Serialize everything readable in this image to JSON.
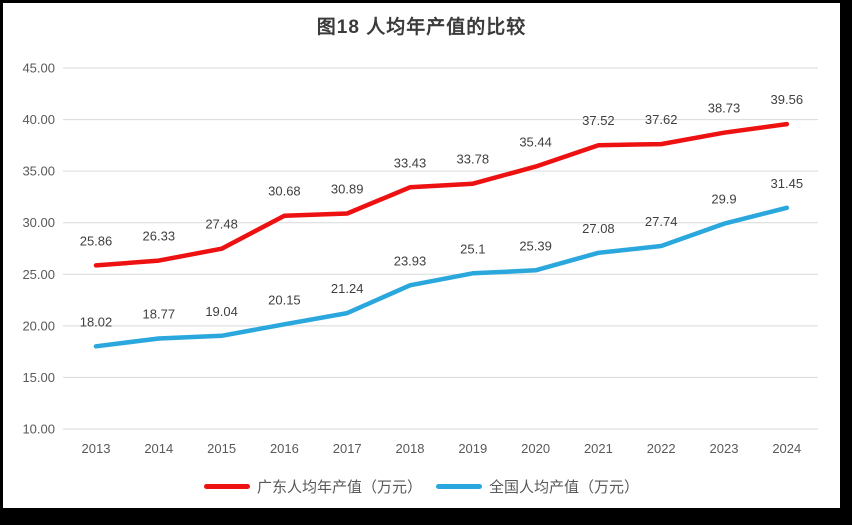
{
  "chart_data": {
    "type": "line",
    "title": "图18 人均年产值的比较",
    "categories": [
      "2013",
      "2014",
      "2015",
      "2016",
      "2017",
      "2018",
      "2019",
      "2020",
      "2021",
      "2022",
      "2023",
      "2024"
    ],
    "series": [
      {
        "id": "guangdong",
        "name": "广东人均年产值（万元）",
        "color": "#ee1111",
        "values": [
          25.86,
          26.33,
          27.48,
          30.68,
          30.89,
          33.43,
          33.78,
          35.44,
          37.52,
          37.62,
          38.73,
          39.56
        ]
      },
      {
        "id": "national",
        "name": "全国人均产值（万元）",
        "color": "#2aa7dd",
        "values": [
          18.02,
          18.77,
          19.04,
          20.15,
          21.24,
          23.93,
          25.1,
          25.39,
          27.08,
          27.74,
          29.9,
          31.45
        ]
      }
    ],
    "ylim": [
      10,
      45
    ],
    "ytick_step": 5,
    "ytick_decimals": 2,
    "grid": true,
    "grid_color": "#d9d9d9",
    "data_labels": true,
    "legend_position": "bottom"
  }
}
